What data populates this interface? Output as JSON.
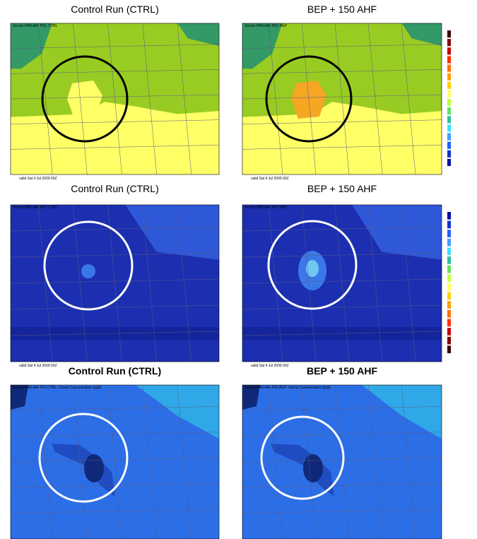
{
  "panels": [
    {
      "title": "Control Run (CTRL)",
      "header": "Enviro-HIRLAM: P01: CTRL",
      "footer": "valid Sat 4 Jul 2009 00Z"
    },
    {
      "title": "BEP + 150 AHF",
      "header": "Enviro-HIRLAM: P01: BEP",
      "footer": "valid Sat 4 Jul 2009 00Z"
    },
    {
      "title": "Control Run (CTRL)",
      "header": "Enviro-HIRLAM: P01: CTRL",
      "footer": "valid Sat 4 Jul 2009 00Z"
    },
    {
      "title": "BEP + 150 AHF",
      "header": "Enviro-HIRLAM: P01: BEP",
      "footer": "valid Sat 4 Jul 2009 00Z"
    },
    {
      "title": "Control Run (CTRL)",
      "header": "Enviro-HIRLAM: P01-CTRL: Ozone Concentration (ppb)"
    },
    {
      "title": "BEP + 150 AHF",
      "header": "Enviro-HIRLAM: P01-BEP: Ozone Concentration (ppb)"
    }
  ]
}
